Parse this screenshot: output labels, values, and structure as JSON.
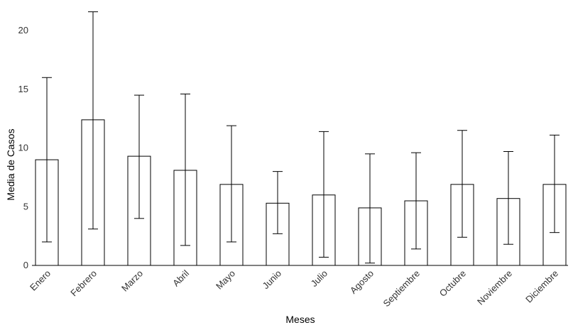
{
  "chart_data": {
    "type": "bar",
    "title": "",
    "xlabel": "Meses",
    "ylabel": "Media de Casos",
    "ylim": [
      0,
      22
    ],
    "yticks": [
      0,
      5,
      10,
      15,
      20
    ],
    "grid": false,
    "categories": [
      "Enero",
      "Febrero",
      "Marzo",
      "Abril",
      "Mayo",
      "Junio",
      "Julio",
      "Agosto",
      "Septiembre",
      "Octubre",
      "Noviembre",
      "Diciembre"
    ],
    "values": [
      9.0,
      12.4,
      9.3,
      8.1,
      6.9,
      5.3,
      6.0,
      4.9,
      5.5,
      6.9,
      5.7,
      6.9
    ],
    "error_low": [
      2.0,
      3.1,
      4.0,
      1.7,
      2.0,
      2.7,
      0.7,
      0.2,
      1.4,
      2.4,
      1.8,
      2.8
    ],
    "error_high": [
      16.0,
      21.6,
      14.5,
      14.6,
      11.9,
      8.0,
      11.4,
      9.5,
      9.6,
      11.5,
      9.7,
      11.1
    ]
  }
}
